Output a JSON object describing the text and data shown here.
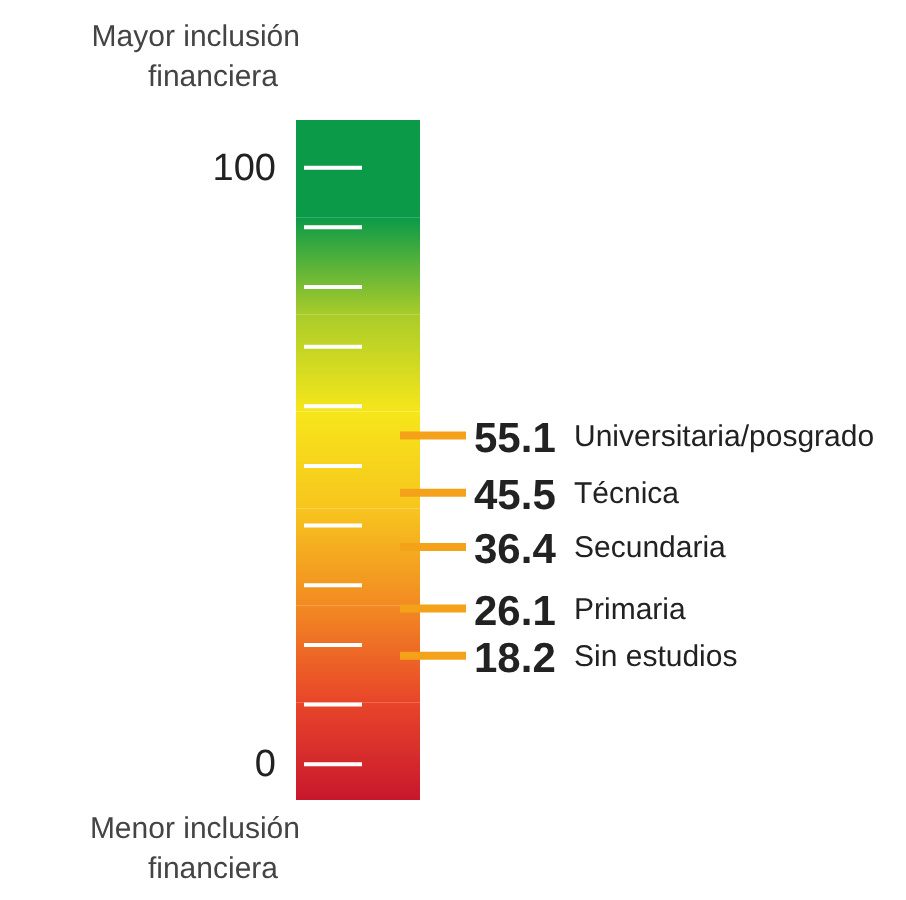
{
  "chart_data": {
    "type": "other",
    "annotations": [
      "Mayor inclusión financiera",
      "Menor inclusión financiera",
      "100",
      "0"
    ],
    "categories": [
      "Universitaria/posgrado",
      "Técnica",
      "Secundaria",
      "Primaria",
      "Sin estudios"
    ],
    "values": [
      55.1,
      45.5,
      36.4,
      26.1,
      18.2
    ],
    "color": "#f5a21b",
    "data_labels": true,
    "bands": [
      {
        "axis": "y",
        "color": "#c8172d"
      },
      {
        "axis": "y",
        "color": "#e8452a"
      },
      {
        "axis": "y",
        "color": "#f28a22"
      },
      {
        "axis": "y",
        "color": "#f7c51e"
      },
      {
        "axis": "y",
        "color": "#f6e61a"
      },
      {
        "axis": "y",
        "color": "#a9cc2a"
      },
      {
        "axis": "y",
        "color": "#0a9a48"
      }
    ]
  }
}
